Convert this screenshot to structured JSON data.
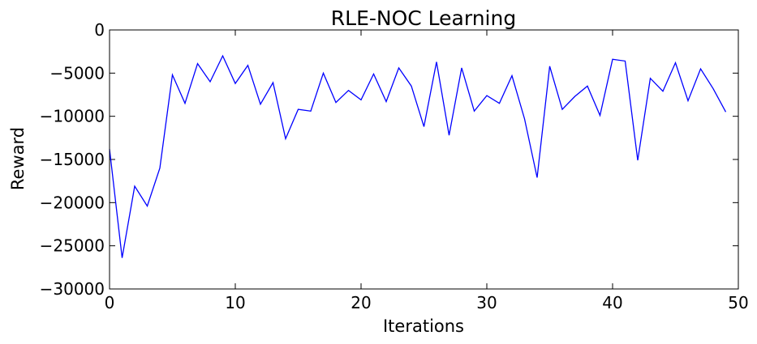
{
  "chart_data": {
    "type": "line",
    "title": "RLE-NOC Learning",
    "xlabel": "Iterations",
    "ylabel": "Reward",
    "xlim": [
      0,
      50
    ],
    "ylim": [
      -30000,
      0
    ],
    "x_ticks": [
      0,
      10,
      20,
      30,
      40,
      50
    ],
    "y_ticks": [
      0,
      -5000,
      -10000,
      -15000,
      -20000,
      -25000,
      -30000
    ],
    "x_tick_labels": [
      "0",
      "10",
      "20",
      "30",
      "40",
      "50"
    ],
    "y_tick_labels": [
      "0",
      "−5000",
      "−10000",
      "−15000",
      "−20000",
      "−25000",
      "−30000"
    ],
    "grid": false,
    "series": [
      {
        "color": "#0000ff",
        "x": [
          0,
          1,
          2,
          3,
          4,
          5,
          6,
          7,
          8,
          9,
          10,
          11,
          12,
          13,
          14,
          15,
          16,
          17,
          18,
          19,
          20,
          21,
          22,
          23,
          24,
          25,
          26,
          27,
          28,
          29,
          30,
          31,
          32,
          33,
          34,
          35,
          36,
          37,
          38,
          39,
          40,
          41,
          42,
          43,
          44,
          45,
          46,
          47,
          48,
          49
        ],
        "values": [
          -13800,
          -26400,
          -18100,
          -20400,
          -16000,
          -5200,
          -8500,
          -3900,
          -6000,
          -3000,
          -6200,
          -4100,
          -8600,
          -6100,
          -12600,
          -9200,
          -9400,
          -5000,
          -8400,
          -7000,
          -8100,
          -5100,
          -8300,
          -4400,
          -6500,
          -11200,
          -3700,
          -12200,
          -4400,
          -9400,
          -7600,
          -8500,
          -5300,
          -10300,
          -17100,
          -4200,
          -9200,
          -7700,
          -6500,
          -9900,
          -3400,
          -3600,
          -15100,
          -5600,
          -7100,
          -3800,
          -8200,
          -4500,
          -6800,
          -9500
        ]
      }
    ]
  }
}
